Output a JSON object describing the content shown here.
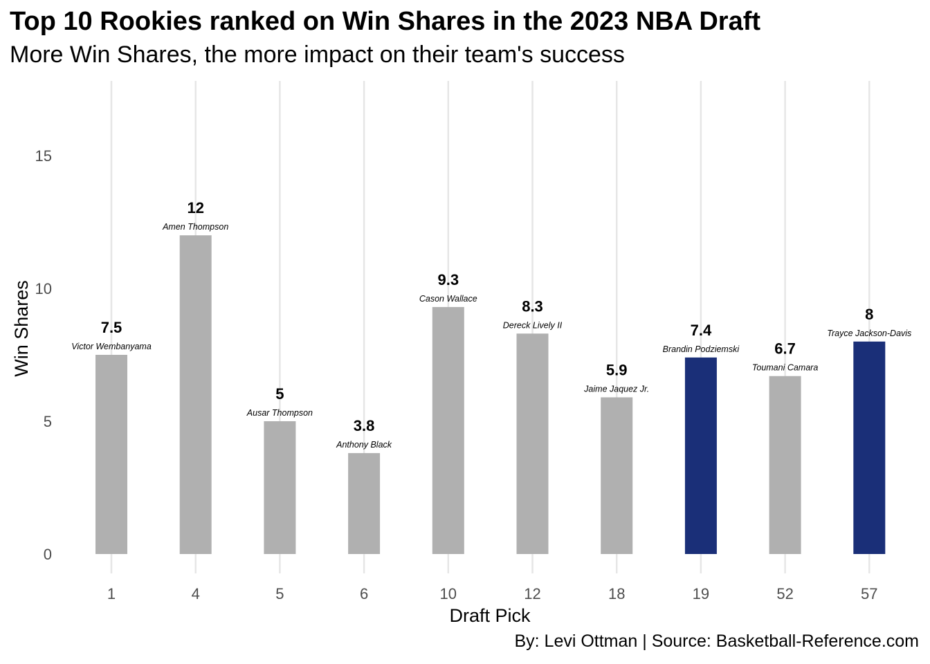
{
  "title": "Top 10 Rookies ranked on Win Shares in the 2023 NBA Draft",
  "subtitle": "More Win Shares, the more impact on their team's success",
  "caption": "By: Levi Ottman  |  Source: Basketball-Reference.com",
  "colors": {
    "default_bar": "#b0b0b0",
    "highlight_bar": "#1a2f78",
    "grid": "#e6e6e6"
  },
  "chart_data": {
    "type": "bar",
    "xlabel": "Draft Pick",
    "ylabel": "Win Shares",
    "ylim": [
      0,
      17.5
    ],
    "yticks": [
      0,
      5,
      10,
      15
    ],
    "grid": "vertical major",
    "categories": [
      "1",
      "4",
      "5",
      "6",
      "10",
      "12",
      "18",
      "19",
      "52",
      "57"
    ],
    "values": [
      7.5,
      12,
      5,
      3.8,
      9.3,
      8.3,
      5.9,
      7.4,
      6.7,
      8
    ],
    "value_labels": [
      "7.5",
      "12",
      "5",
      "3.8",
      "9.3",
      "8.3",
      "5.9",
      "7.4",
      "6.7",
      "8"
    ],
    "players": [
      "Victor Wembanyama",
      "Amen Thompson",
      "Ausar Thompson",
      "Anthony Black",
      "Cason Wallace",
      "Dereck Lively II",
      "Jaime Jaquez Jr.",
      "Brandin Podziemski",
      "Toumani Camara",
      "Trayce Jackson-Davis"
    ],
    "highlighted": [
      false,
      false,
      false,
      false,
      false,
      false,
      false,
      true,
      false,
      true
    ]
  }
}
